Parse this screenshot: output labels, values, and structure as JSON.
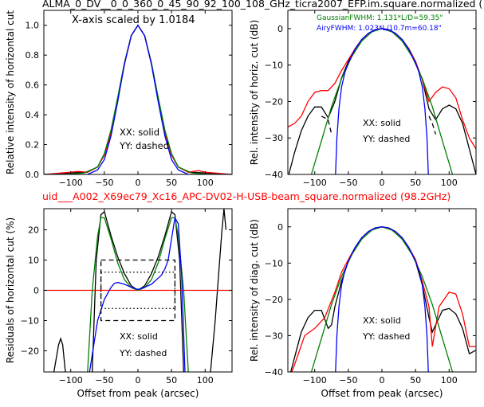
{
  "figure": {
    "top_title": "ALMA_0_DV__0_0_360_0_45_90_92_100_108_GHz_ticra2007_EFP.im.square.normalized (",
    "mid_title": "uid___A002_X69ec79_Xc16_APC-DV02-H-USB-beam_square.normalized (98.2GHz)",
    "mid_title_color": "#ff0000"
  },
  "colors": {
    "black": "#000000",
    "red": "#ff0000",
    "green": "#008000",
    "blue": "#0000ff"
  },
  "chart_data": [
    {
      "id": "top-left",
      "type": "line",
      "ylabel": "Relative intensity of horizontal cut",
      "xlabel": "",
      "xlim": [
        -140,
        140
      ],
      "ylim": [
        0,
        1.1
      ],
      "xticks": [
        -100,
        -50,
        0,
        50,
        100
      ],
      "yticks": [
        0.0,
        0.2,
        0.4,
        0.6,
        0.8,
        1.0
      ],
      "xtick_labels": [
        "−100",
        "−50",
        "0",
        "50",
        "100"
      ],
      "ytick_labels": [
        "0.0",
        "0.2",
        "0.4",
        "0.6",
        "0.8",
        "1.0"
      ],
      "annotations": [
        "X-axis scaled by 1.0184",
        "XX: solid",
        "YY: dashed"
      ],
      "series": [
        {
          "color": "black",
          "style": "solid",
          "x": [
            -140,
            -100,
            -75,
            -60,
            -50,
            -40,
            -30,
            -20,
            -10,
            0,
            10,
            20,
            30,
            40,
            50,
            60,
            75,
            100,
            140
          ],
          "y": [
            0.0,
            0.01,
            0.015,
            0.05,
            0.13,
            0.28,
            0.5,
            0.74,
            0.93,
            1.0,
            0.93,
            0.74,
            0.5,
            0.28,
            0.13,
            0.05,
            0.015,
            0.01,
            0.0
          ]
        },
        {
          "color": "red",
          "style": "solid",
          "x": [
            -140,
            -100,
            -90,
            -75,
            -60,
            -50,
            -40,
            -30,
            -20,
            -10,
            0,
            10,
            20,
            30,
            40,
            50,
            60,
            75,
            90,
            100,
            140
          ],
          "y": [
            0.0,
            0.015,
            0.02,
            0.015,
            0.05,
            0.13,
            0.28,
            0.5,
            0.74,
            0.93,
            1.0,
            0.93,
            0.74,
            0.5,
            0.28,
            0.13,
            0.05,
            0.015,
            0.025,
            0.015,
            0.0
          ]
        },
        {
          "color": "green",
          "style": "solid",
          "x": [
            -140,
            -100,
            -80,
            -60,
            -50,
            -40,
            -30,
            -20,
            -10,
            0,
            10,
            20,
            30,
            40,
            50,
            60,
            80,
            100,
            140
          ],
          "y": [
            0.0,
            0.002,
            0.01,
            0.05,
            0.14,
            0.3,
            0.52,
            0.75,
            0.93,
            1.0,
            0.93,
            0.75,
            0.52,
            0.3,
            0.14,
            0.05,
            0.01,
            0.002,
            0.0
          ]
        },
        {
          "color": "blue",
          "style": "solid",
          "x": [
            -140,
            -75,
            -60,
            -50,
            -40,
            -30,
            -20,
            -10,
            0,
            10,
            20,
            30,
            40,
            50,
            60,
            75,
            140
          ],
          "y": [
            0.0,
            0.0,
            0.03,
            0.1,
            0.26,
            0.49,
            0.74,
            0.93,
            1.0,
            0.93,
            0.74,
            0.49,
            0.26,
            0.1,
            0.03,
            0.0,
            0.0
          ]
        }
      ]
    },
    {
      "id": "top-right",
      "type": "line",
      "ylabel": "Rel. intensity of horiz. cut (dB)",
      "xlabel": "",
      "xlim": [
        -140,
        140
      ],
      "ylim": [
        -40,
        5
      ],
      "xticks": [
        -100,
        -50,
        0,
        50,
        100
      ],
      "yticks": [
        -40,
        -30,
        -20,
        -10,
        0
      ],
      "xtick_labels": [
        "−100",
        "−50",
        "0",
        "50",
        "100"
      ],
      "ytick_labels": [
        "−40",
        "−30",
        "−20",
        "−10",
        "0"
      ],
      "annotations": [
        "XX: solid",
        "YY: dashed"
      ],
      "legend_entries": [
        {
          "text": "GaussianFWHM: 1.131*L/D=59.35\"",
          "color": "green"
        },
        {
          "text": "AiryFWHM: 1.023*L/10.7m=60.18\"",
          "color": "blue"
        }
      ],
      "series": [
        {
          "color": "black",
          "style": "solid",
          "x": [
            -140,
            -130,
            -120,
            -110,
            -100,
            -90,
            -80,
            -70,
            -60,
            -50,
            -40,
            -30,
            -20,
            -10,
            0,
            10,
            20,
            30,
            40,
            50,
            60,
            70,
            80,
            90,
            100,
            110,
            120,
            130,
            140
          ],
          "y": [
            -41,
            -34,
            -28,
            -24,
            -21.5,
            -21.5,
            -24.5,
            -20,
            -13.5,
            -9,
            -5.5,
            -3,
            -1.3,
            -0.3,
            0,
            -0.3,
            -1.3,
            -3,
            -5.5,
            -9,
            -14,
            -22,
            -25,
            -22,
            -21,
            -22,
            -26,
            -33,
            -40
          ]
        },
        {
          "color": "black",
          "style": "dashed",
          "x": [
            -90,
            -80,
            -75
          ],
          "y": [
            -24,
            -25,
            -29
          ]
        },
        {
          "color": "black",
          "style": "dashed",
          "x": [
            70,
            75,
            80
          ],
          "y": [
            -24,
            -26,
            -29
          ]
        },
        {
          "color": "red",
          "style": "solid",
          "x": [
            -140,
            -130,
            -120,
            -110,
            -100,
            -90,
            -80,
            -70,
            -60,
            -50,
            -40,
            -30,
            -20,
            -10,
            0,
            10,
            20,
            30,
            40,
            50,
            60,
            70,
            80,
            90,
            100,
            110,
            120,
            130,
            140
          ],
          "y": [
            -27,
            -26,
            -24,
            -20,
            -17.5,
            -17,
            -17,
            -15,
            -11.5,
            -8.5,
            -5.5,
            -3,
            -1.3,
            -0.3,
            0,
            -0.3,
            -1.3,
            -3,
            -5.5,
            -9,
            -14,
            -20,
            -17.5,
            -16,
            -16.5,
            -19,
            -25,
            -30,
            -33
          ]
        },
        {
          "color": "green",
          "style": "solid",
          "x": [
            -105,
            -90,
            -75,
            -60,
            -45,
            -30,
            -15,
            0,
            15,
            30,
            45,
            60,
            75,
            90,
            105
          ],
          "y": [
            -40,
            -30.8,
            -21.4,
            -13.7,
            -7.7,
            -3.4,
            -0.9,
            0,
            -0.9,
            -3.4,
            -7.7,
            -13.7,
            -21.4,
            -30.8,
            -40
          ]
        },
        {
          "color": "blue",
          "style": "solid",
          "x": [
            -69,
            -67,
            -64,
            -60,
            -55,
            -50,
            -40,
            -30,
            -20,
            -10,
            0,
            10,
            20,
            30,
            40,
            50,
            55,
            60,
            64,
            67,
            69
          ],
          "y": [
            -40,
            -30,
            -22,
            -16,
            -12,
            -9.4,
            -5.7,
            -3,
            -1.3,
            -0.3,
            0,
            -0.3,
            -1.3,
            -3,
            -5.7,
            -9.4,
            -12,
            -16,
            -22,
            -30,
            -40
          ]
        }
      ]
    },
    {
      "id": "bottom-left",
      "type": "line",
      "ylabel": "Residuals of horizontal cut (%)",
      "xlabel": "Offset from peak (arcsec)",
      "xlim": [
        -140,
        140
      ],
      "ylim": [
        -27,
        27
      ],
      "xticks": [
        -100,
        -50,
        0,
        50,
        100
      ],
      "yticks": [
        -20,
        -10,
        0,
        10,
        20
      ],
      "xtick_labels": [
        "−100",
        "−50",
        "0",
        "50",
        "100"
      ],
      "ytick_labels": [
        "−20",
        "−10",
        "0",
        "10",
        "20"
      ],
      "annotations": [
        "XX: solid",
        "YY: dashed"
      ],
      "series": [
        {
          "color": "black",
          "style": "solid",
          "x": [
            -125,
            -118,
            -115,
            -112,
            -108
          ],
          "y": [
            -27,
            -18,
            -16,
            -18,
            -27
          ]
        },
        {
          "color": "black",
          "style": "solid",
          "x": [
            -68,
            -62,
            -55,
            -50,
            -45,
            -40,
            -30,
            -20,
            -10,
            0,
            10,
            20,
            30,
            40,
            45,
            50,
            55,
            62,
            68
          ],
          "y": [
            -27,
            10,
            25,
            26,
            22,
            18,
            11,
            5.5,
            1.5,
            0,
            1.5,
            5.5,
            11,
            18,
            22,
            26,
            25,
            10,
            -27
          ]
        },
        {
          "color": "black",
          "style": "solid",
          "x": [
            108,
            115,
            120,
            125,
            128,
            131
          ],
          "y": [
            -27,
            -10,
            5,
            20,
            27,
            20
          ]
        },
        {
          "color": "red",
          "style": "solid",
          "x": [
            -140,
            140
          ],
          "y": [
            0,
            0
          ]
        },
        {
          "color": "green",
          "style": "solid",
          "x": [
            -75,
            -68,
            -60,
            -55,
            -50,
            -40,
            -30,
            -20,
            -10,
            0,
            10,
            20,
            30,
            40,
            50,
            55,
            60,
            68,
            75
          ],
          "y": [
            -27,
            0,
            18,
            24,
            24,
            17,
            9,
            3.5,
            0.9,
            0,
            0.9,
            3.5,
            9,
            17,
            24,
            24,
            18,
            0,
            -27
          ]
        },
        {
          "color": "blue",
          "style": "solid",
          "x": [
            -72,
            -60,
            -50,
            -40,
            -35,
            -30,
            -20,
            -10,
            0,
            10,
            20,
            30,
            35,
            40,
            45,
            50,
            55,
            60,
            65,
            70
          ],
          "y": [
            -27,
            -10,
            -3,
            1,
            2.3,
            2.6,
            2,
            1,
            0.3,
            1,
            2,
            4,
            5,
            7,
            10,
            17,
            24,
            22,
            5,
            -27
          ]
        },
        {
          "color": "black",
          "style": "dashed",
          "x": [
            -55,
            55,
            55,
            -55,
            -55
          ],
          "y": [
            10,
            10,
            -10,
            -10,
            10
          ]
        },
        {
          "color": "black",
          "style": "dotted",
          "x": [
            -55,
            55,
            55,
            -55,
            -55
          ],
          "y": [
            6,
            6,
            -6,
            -6,
            6
          ]
        }
      ]
    },
    {
      "id": "bottom-right",
      "type": "line",
      "ylabel": "Rel. intensity of diag. cut (dB)",
      "xlabel": "Offset from peak (arcsec)",
      "xlim": [
        -140,
        140
      ],
      "ylim": [
        -40,
        5
      ],
      "xticks": [
        -100,
        -50,
        0,
        50,
        100
      ],
      "yticks": [
        -40,
        -30,
        -20,
        -10,
        0
      ],
      "xtick_labels": [
        "−100",
        "−50",
        "0",
        "50",
        "100"
      ],
      "ytick_labels": [
        "−40",
        "−30",
        "−20",
        "−10",
        "0"
      ],
      "annotations": [
        "XX: solid",
        "YY: dashed"
      ],
      "series": [
        {
          "color": "black",
          "style": "solid",
          "x": [
            -140,
            -130,
            -120,
            -110,
            -100,
            -90,
            -80,
            -75,
            -70,
            -60,
            -50,
            -40,
            -30,
            -20,
            -10,
            0,
            10,
            20,
            30,
            40,
            50,
            60,
            70,
            75,
            80,
            90,
            100,
            110,
            120,
            130,
            140
          ],
          "y": [
            -43,
            -36,
            -29,
            -25,
            -23,
            -23,
            -28,
            -27,
            -22,
            -15,
            -9.5,
            -5.7,
            -3,
            -1.3,
            -0.3,
            0,
            -0.3,
            -1.3,
            -3,
            -5.7,
            -9.5,
            -16,
            -25,
            -29,
            -27,
            -23,
            -22.5,
            -24,
            -28,
            -35,
            -34
          ]
        },
        {
          "color": "red",
          "style": "solid",
          "x": [
            -140,
            -130,
            -115,
            -100,
            -85,
            -70,
            -60,
            -50,
            -40,
            -30,
            -20,
            -10,
            0,
            10,
            20,
            30,
            40,
            50,
            60,
            70,
            75,
            85,
            100,
            110,
            120,
            130,
            140
          ],
          "y": [
            -43,
            -38,
            -30,
            -28,
            -25,
            -18,
            -12.5,
            -9,
            -5.7,
            -3,
            -1.3,
            -0.3,
            0,
            -0.3,
            -1.3,
            -3,
            -5.7,
            -9,
            -15,
            -22,
            -33,
            -22,
            -18,
            -18.5,
            -24,
            -33,
            -33
          ]
        },
        {
          "color": "green",
          "style": "solid",
          "x": [
            -105,
            -90,
            -75,
            -60,
            -45,
            -30,
            -15,
            0,
            15,
            30,
            45,
            60,
            75,
            90,
            105
          ],
          "y": [
            -40,
            -30.8,
            -21.4,
            -13.7,
            -7.7,
            -3.4,
            -0.9,
            0,
            -0.9,
            -3.4,
            -7.7,
            -13.7,
            -21.4,
            -30.8,
            -40
          ]
        },
        {
          "color": "blue",
          "style": "solid",
          "x": [
            -69,
            -67,
            -64,
            -60,
            -55,
            -50,
            -40,
            -30,
            -20,
            -10,
            0,
            10,
            20,
            30,
            40,
            50,
            55,
            60,
            64,
            67,
            69
          ],
          "y": [
            -40,
            -30,
            -22,
            -16,
            -12,
            -9.4,
            -5.7,
            -3,
            -1.3,
            -0.3,
            0,
            -0.3,
            -1.3,
            -3,
            -5.7,
            -9.4,
            -12,
            -16,
            -22,
            -30,
            -40
          ]
        }
      ]
    }
  ]
}
